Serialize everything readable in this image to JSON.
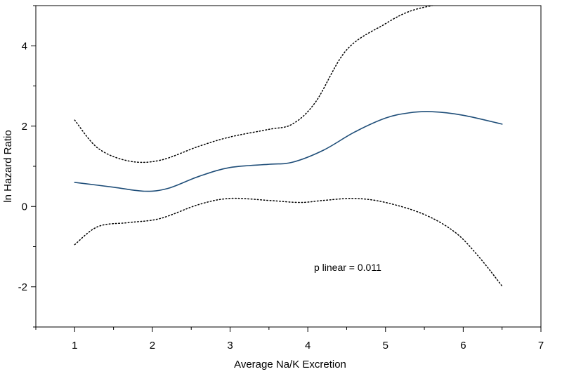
{
  "chart_data": {
    "type": "line",
    "title": "",
    "xlabel": "Average Na/K Excretion",
    "ylabel": "ln Hazard Ratio",
    "xlim": [
      0.5,
      7
    ],
    "ylim": [
      -3,
      5
    ],
    "x_ticks": [
      "1",
      "2",
      "3",
      "4",
      "5",
      "6",
      "7"
    ],
    "y_ticks": [
      "-2",
      "0",
      "2",
      "4"
    ],
    "grid": false,
    "annotation": "p linear = 0.011",
    "colors": {
      "estimate": "#1f4e79",
      "ci": "#000000"
    },
    "series": [
      {
        "style": "solid",
        "x": [
          1,
          1.5,
          1.9,
          2.2,
          2.6,
          3,
          3.5,
          3.8,
          4.2,
          4.6,
          5,
          5.3,
          5.6,
          6,
          6.5
        ],
        "y": [
          0.6,
          0.48,
          0.38,
          0.45,
          0.75,
          0.97,
          1.05,
          1.1,
          1.4,
          1.85,
          2.2,
          2.33,
          2.36,
          2.27,
          2.05
        ]
      },
      {
        "style": "dotted",
        "x": [
          1,
          1.3,
          1.7,
          2.1,
          2.6,
          3,
          3.5,
          3.8,
          4.1,
          4.5,
          5,
          5.3,
          5.6,
          5.8
        ],
        "y": [
          2.15,
          1.45,
          1.13,
          1.15,
          1.5,
          1.73,
          1.92,
          2.05,
          2.6,
          3.9,
          4.55,
          4.85,
          5.0,
          5.05
        ]
      },
      {
        "style": "dotted",
        "x": [
          1,
          1.3,
          1.7,
          2.1,
          2.6,
          3,
          3.5,
          3.9,
          4.2,
          4.6,
          5,
          5.5,
          5.9,
          6.2,
          6.5
        ],
        "y": [
          -0.95,
          -0.5,
          -0.4,
          -0.3,
          0.05,
          0.2,
          0.15,
          0.1,
          0.15,
          0.2,
          0.1,
          -0.2,
          -0.65,
          -1.25,
          -1.98
        ]
      }
    ]
  }
}
